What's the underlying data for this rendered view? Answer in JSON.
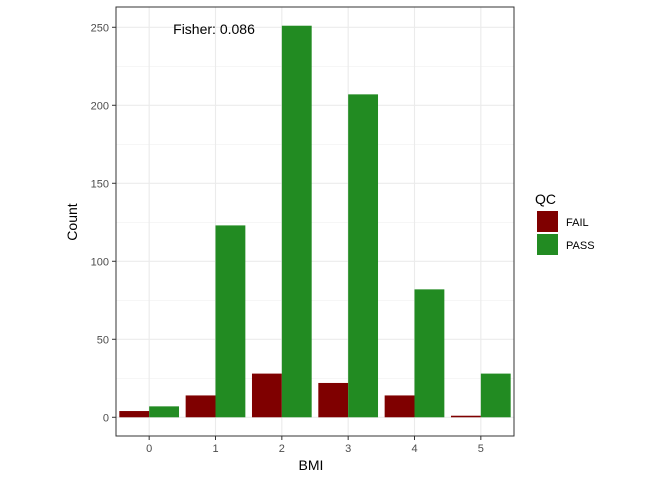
{
  "chart_data": {
    "type": "bar",
    "categories": [
      "0",
      "1",
      "2",
      "3",
      "4",
      "5"
    ],
    "series": [
      {
        "name": "FAIL",
        "color": "#7f0000",
        "values": [
          4,
          14,
          28,
          22,
          14,
          1
        ]
      },
      {
        "name": "PASS",
        "color": "#228b22",
        "values": [
          7,
          123,
          251,
          207,
          82,
          28
        ]
      }
    ],
    "xlabel": "BMI",
    "ylabel": "Count",
    "ylim": [
      -12,
      263
    ],
    "yticks": [
      0,
      50,
      100,
      150,
      200,
      250
    ],
    "legend_title": "QC",
    "legend_position": "right",
    "annotation": "Fisher: 0.086",
    "grid": true
  }
}
